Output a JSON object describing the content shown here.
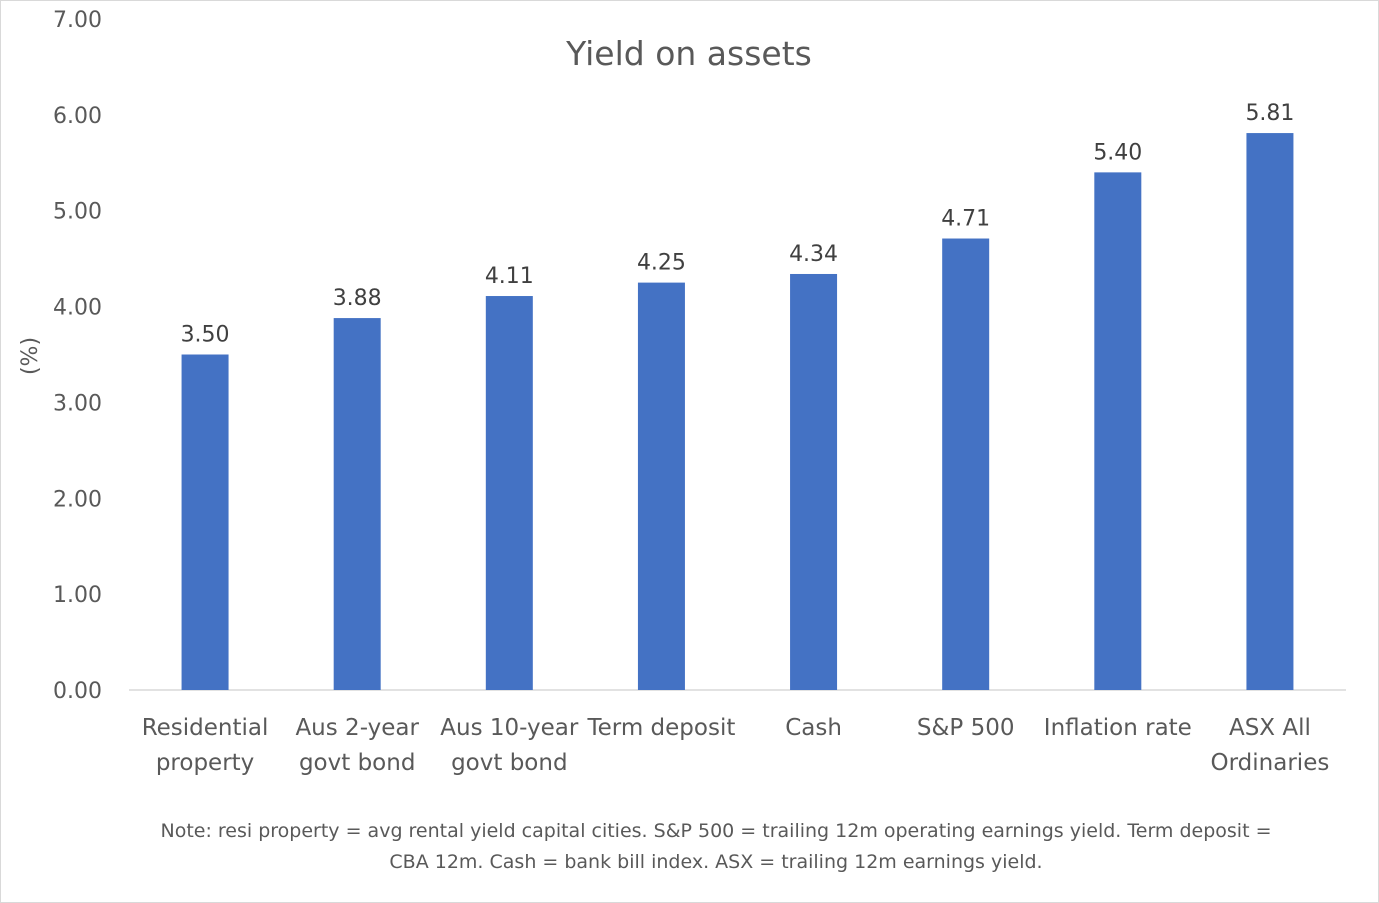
{
  "chart_data": {
    "type": "bar",
    "title": "Yield on assets",
    "ylabel": "(%)",
    "xlabel": "",
    "ylim": [
      0,
      7
    ],
    "y_ticks": [
      "0.00",
      "1.00",
      "2.00",
      "3.00",
      "4.00",
      "5.00",
      "6.00",
      "7.00"
    ],
    "grid": false,
    "legend": "none",
    "categories": [
      [
        "Residential",
        "property"
      ],
      [
        "Aus 2-year",
        "govt bond"
      ],
      [
        "Aus 10-year",
        "govt bond"
      ],
      [
        "Term deposit"
      ],
      [
        "Cash"
      ],
      [
        "S&P 500"
      ],
      [
        "Inflation rate"
      ],
      [
        "ASX All",
        "Ordinaries"
      ]
    ],
    "values": [
      3.5,
      3.88,
      4.11,
      4.25,
      4.34,
      4.71,
      5.4,
      5.81
    ],
    "data_labels": [
      "3.50",
      "3.88",
      "4.11",
      "4.25",
      "4.34",
      "4.71",
      "5.40",
      "5.81"
    ],
    "bar_color": "#4472c4",
    "note": "Note: resi property = avg rental yield capital cities. S&P 500 = trailing 12m operating earnings yield. Term deposit = CBA 12m. Cash = bank bill index. ASX = trailing 12m earnings yield."
  }
}
